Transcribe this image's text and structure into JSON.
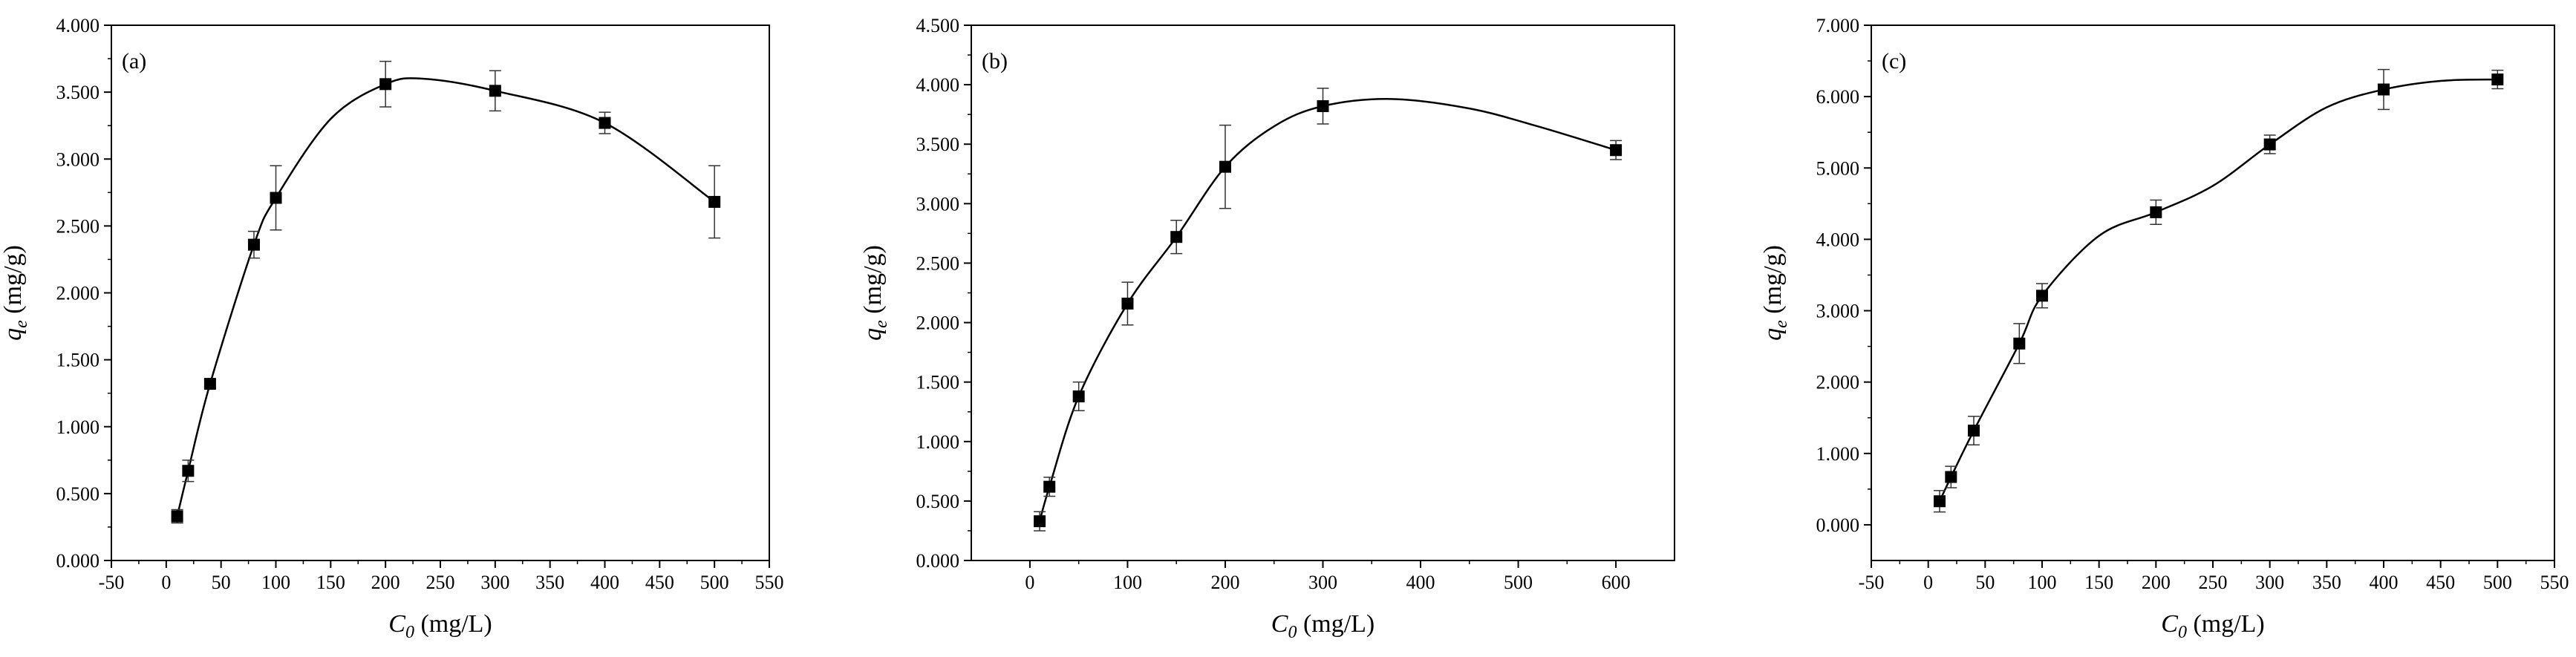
{
  "chart_data": [
    {
      "type": "scatter",
      "panel_label": "(a)",
      "xlabel": {
        "symbol": "C",
        "sub": "0",
        "unit": " (mg/L)"
      },
      "ylabel": {
        "symbol": "q",
        "sub": "e",
        "unit": " (mg/g)"
      },
      "xlim": [
        -50,
        550
      ],
      "ylim": [
        0,
        4
      ],
      "xticks": [
        -50,
        0,
        50,
        100,
        150,
        200,
        250,
        300,
        350,
        400,
        450,
        500,
        550
      ],
      "yticks": [
        "0.000",
        "0.500",
        "1.000",
        "1.500",
        "2.000",
        "2.500",
        "3.000",
        "3.500",
        "4.000"
      ],
      "series": [
        {
          "x": [
            10,
            20,
            40,
            80,
            100,
            200,
            300,
            400,
            500
          ],
          "y": [
            0.33,
            0.67,
            1.32,
            2.36,
            2.71,
            3.56,
            3.51,
            3.27,
            2.68
          ],
          "yerr": [
            0.05,
            0.08,
            0.03,
            0.1,
            0.24,
            0.17,
            0.15,
            0.08,
            0.27
          ]
        }
      ],
      "fit_curve": {
        "x": [
          10,
          20,
          40,
          80,
          100,
          150,
          200,
          235,
          300,
          400,
          500
        ],
        "y": [
          0.33,
          0.67,
          1.32,
          2.36,
          2.71,
          3.3,
          3.56,
          3.6,
          3.51,
          3.27,
          2.68
        ]
      },
      "grid": false,
      "legend": "none"
    },
    {
      "type": "scatter",
      "panel_label": "(b)",
      "xlabel": {
        "symbol": "C",
        "sub": "0",
        "unit": " (mg/L)"
      },
      "ylabel": {
        "symbol": "q",
        "sub": "e",
        "unit": " (mg/g)"
      },
      "xlim": [
        -60,
        660
      ],
      "ylim": [
        0,
        4.5
      ],
      "xticks": [
        0,
        100,
        200,
        300,
        400,
        500,
        600
      ],
      "yticks": [
        "0.000",
        "0.500",
        "1.000",
        "1.500",
        "2.000",
        "2.500",
        "3.000",
        "3.500",
        "4.000",
        "4.500"
      ],
      "series": [
        {
          "x": [
            10,
            20,
            50,
            100,
            150,
            200,
            300,
            600
          ],
          "y": [
            0.33,
            0.62,
            1.38,
            2.16,
            2.72,
            3.31,
            3.82,
            3.45
          ],
          "yerr": [
            0.08,
            0.08,
            0.12,
            0.18,
            0.14,
            0.35,
            0.15,
            0.08
          ]
        }
      ],
      "fit_curve": {
        "x": [
          10,
          20,
          50,
          100,
          150,
          200,
          250,
          300,
          370,
          450,
          520,
          600
        ],
        "y": [
          0.33,
          0.62,
          1.38,
          2.16,
          2.72,
          3.31,
          3.65,
          3.82,
          3.88,
          3.8,
          3.65,
          3.45
        ]
      },
      "grid": false,
      "legend": "none"
    },
    {
      "type": "scatter",
      "panel_label": "(c)",
      "xlabel": {
        "symbol": "C",
        "sub": "0",
        "unit": " (mg/L)"
      },
      "ylabel": {
        "symbol": "q",
        "sub": "e",
        "unit": " (mg/g)"
      },
      "xlim": [
        -50,
        550
      ],
      "ylim": [
        -0.5,
        7
      ],
      "xticks": [
        -50,
        0,
        50,
        100,
        150,
        200,
        250,
        300,
        350,
        400,
        450,
        500,
        550
      ],
      "yticks": [
        "0.000",
        "1.000",
        "2.000",
        "3.000",
        "4.000",
        "5.000",
        "6.000",
        "7.000"
      ],
      "series": [
        {
          "x": [
            10,
            20,
            40,
            80,
            100,
            200,
            300,
            400,
            500
          ],
          "y": [
            0.33,
            0.67,
            1.32,
            2.54,
            3.21,
            4.38,
            5.33,
            6.1,
            6.24
          ],
          "yerr": [
            0.15,
            0.15,
            0.2,
            0.28,
            0.17,
            0.17,
            0.13,
            0.28,
            0.13
          ]
        }
      ],
      "fit_curve": {
        "x": [
          10,
          20,
          40,
          80,
          100,
          150,
          200,
          250,
          300,
          350,
          400,
          450,
          500
        ],
        "y": [
          0.33,
          0.67,
          1.32,
          2.54,
          3.21,
          4.05,
          4.38,
          4.75,
          5.33,
          5.85,
          6.1,
          6.22,
          6.24
        ]
      },
      "grid": false,
      "legend": "none"
    }
  ]
}
